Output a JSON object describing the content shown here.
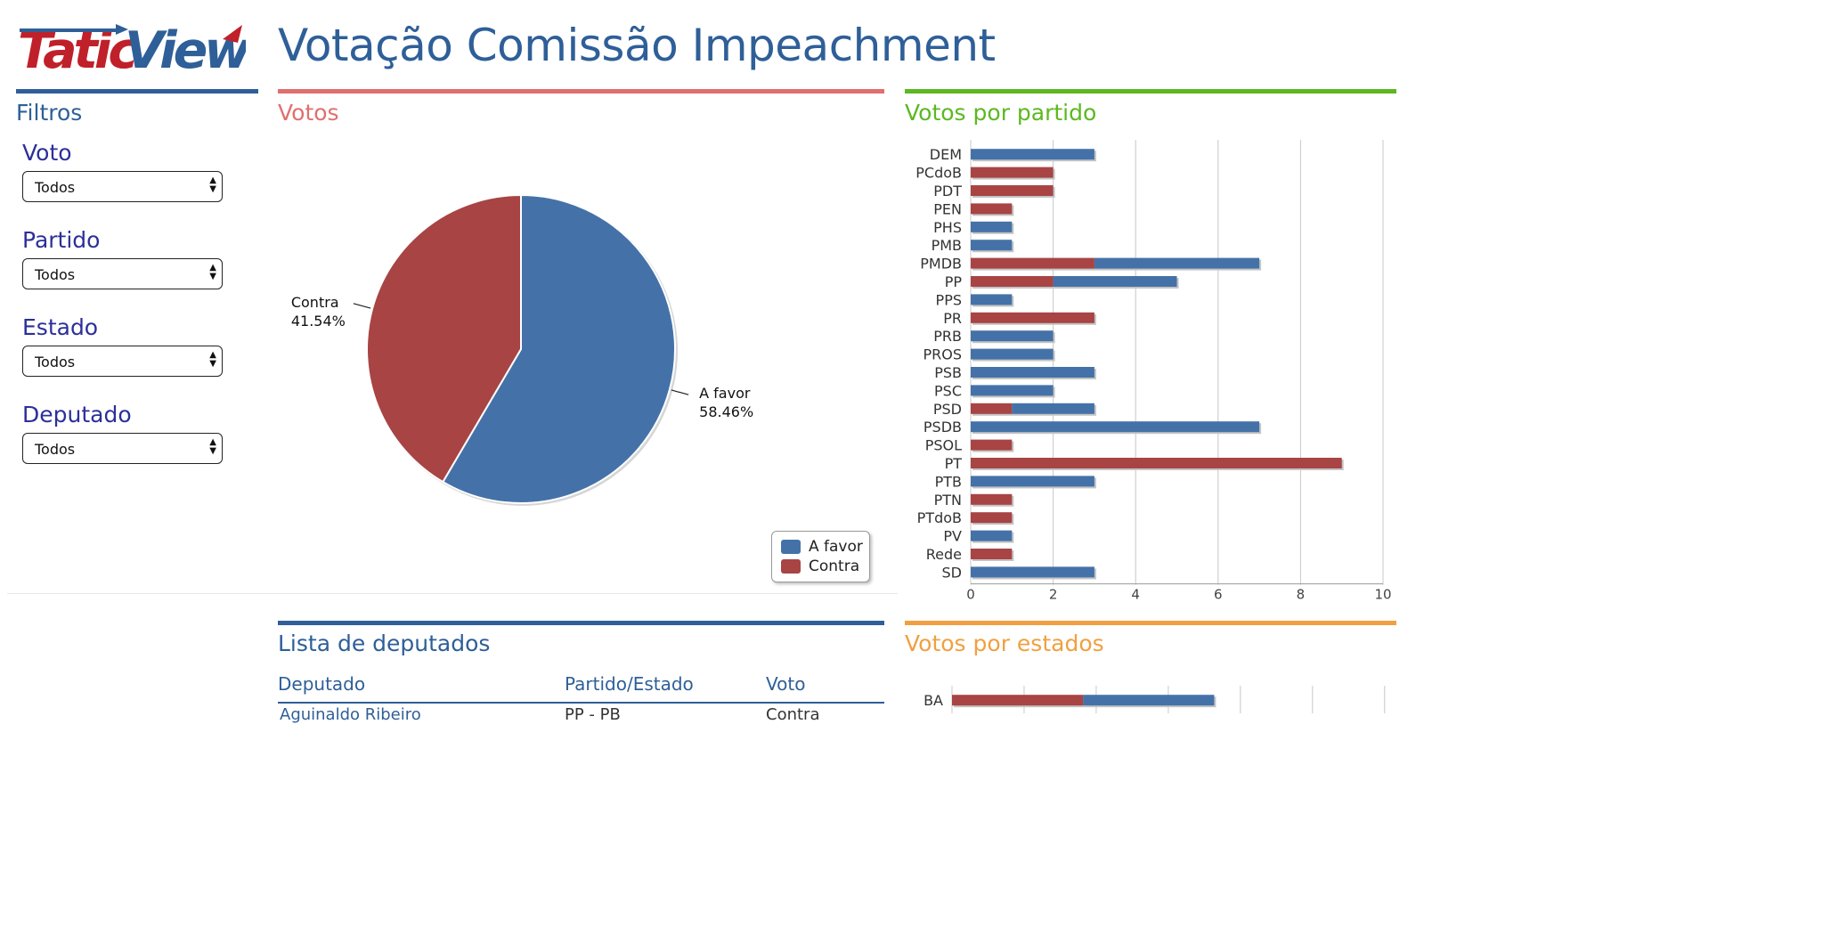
{
  "app": {
    "logo_text": "TaticView",
    "title": "Votação Comissão Impeachment"
  },
  "colors": {
    "brand_blue": "#2e5f98",
    "brand_red": "#c0202a",
    "favor": "#4472a8",
    "contra": "#a84444",
    "votos_title": "#e06f6f",
    "partido_title": "#5cb820",
    "estados_title": "#f0a040",
    "filter_label": "#2c2f9a"
  },
  "filters": {
    "title": "Filtros",
    "items": [
      {
        "label": "Voto",
        "value": "Todos"
      },
      {
        "label": "Partido",
        "value": "Todos"
      },
      {
        "label": "Estado",
        "value": "Todos"
      },
      {
        "label": "Deputado",
        "value": "Todos"
      }
    ]
  },
  "votos_panel": {
    "title": "Votos",
    "legend": [
      "A favor",
      "Contra"
    ]
  },
  "partido_panel": {
    "title": "Votos por partido"
  },
  "deputados_panel": {
    "title": "Lista de deputados",
    "columns": [
      "Deputado",
      "Partido/Estado",
      "Voto"
    ],
    "rows": [
      {
        "deputado": "Aguinaldo Ribeiro",
        "partido_estado": "PP - PB",
        "voto": "Contra"
      }
    ]
  },
  "estados_panel": {
    "title": "Votos por estados"
  },
  "chart_data": [
    {
      "type": "pie",
      "title": "",
      "slices": [
        {
          "name": "A favor",
          "value": 58.46,
          "label": "58.46%",
          "color": "#4472a8"
        },
        {
          "name": "Contra",
          "value": 41.54,
          "label": "41.54%",
          "color": "#a84444"
        }
      ],
      "legend": "bottom-right"
    },
    {
      "type": "bar",
      "orientation": "horizontal",
      "stacked": true,
      "categories": [
        "DEM",
        "PCdoB",
        "PDT",
        "PEN",
        "PHS",
        "PMB",
        "PMDB",
        "PP",
        "PPS",
        "PR",
        "PRB",
        "PROS",
        "PSB",
        "PSC",
        "PSD",
        "PSDB",
        "PSOL",
        "PT",
        "PTB",
        "PTN",
        "PTdoB",
        "PV",
        "Rede",
        "SD"
      ],
      "series": [
        {
          "name": "Contra",
          "color": "#a84444",
          "values": [
            0,
            2,
            2,
            1,
            0,
            0,
            3,
            2,
            0,
            3,
            0,
            0,
            0,
            0,
            1,
            0,
            1,
            9,
            0,
            1,
            1,
            0,
            1,
            0
          ]
        },
        {
          "name": "A favor",
          "color": "#4472a8",
          "values": [
            3,
            0,
            0,
            0,
            1,
            1,
            4,
            3,
            1,
            0,
            2,
            2,
            3,
            2,
            2,
            7,
            0,
            0,
            3,
            0,
            0,
            1,
            0,
            3
          ]
        }
      ],
      "xlim": [
        0,
        10
      ],
      "xticks": [
        "0",
        "2",
        "4",
        "6",
        "8",
        "10"
      ],
      "grid": true
    },
    {
      "type": "bar",
      "orientation": "horizontal",
      "stacked": true,
      "categories": [
        "BA"
      ],
      "series": [
        {
          "name": "Contra",
          "color": "#a84444",
          "values": [
            4
          ]
        },
        {
          "name": "A favor",
          "color": "#4472a8",
          "values": [
            4
          ]
        }
      ],
      "xlim": [
        0,
        15
      ],
      "grid": true
    }
  ]
}
